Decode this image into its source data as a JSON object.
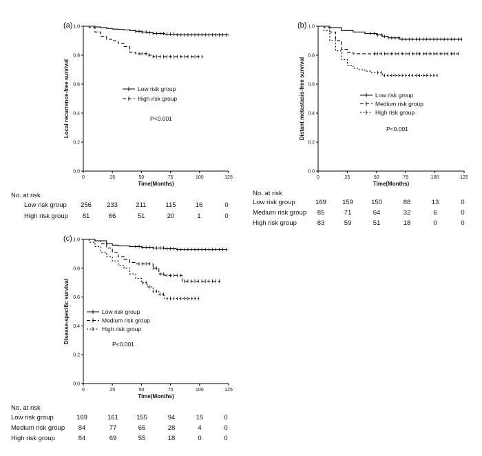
{
  "chart_data": [
    {
      "type": "line",
      "panel_label": "(a)",
      "title": "",
      "xlabel": "Time(Months)",
      "ylabel": "Local recurrence-free survival",
      "xlim": [
        0,
        125
      ],
      "ylim": [
        0,
        1.0
      ],
      "x_ticks": [
        "0",
        "25",
        "50",
        "75",
        "100",
        "125"
      ],
      "y_ticks": [
        "0.0",
        "0.2",
        "0.4",
        "0.6",
        "0.8",
        "1.0"
      ],
      "grid": false,
      "legend_position": "center",
      "p_value": "P<0.001",
      "series": [
        {
          "name": "Low risk group",
          "style": "solid",
          "x": [
            0,
            5,
            10,
            15,
            20,
            25,
            30,
            35,
            40,
            45,
            50,
            55,
            60,
            70,
            80,
            90,
            100,
            110,
            125
          ],
          "y": [
            1.0,
            1.0,
            0.995,
            0.99,
            0.985,
            0.98,
            0.978,
            0.975,
            0.97,
            0.965,
            0.96,
            0.955,
            0.95,
            0.945,
            0.94,
            0.94,
            0.94,
            0.94,
            0.94
          ]
        },
        {
          "name": "High risk group",
          "style": "dashed",
          "x": [
            0,
            5,
            10,
            15,
            20,
            25,
            30,
            35,
            40,
            45,
            50,
            55,
            60,
            70,
            80,
            90,
            103
          ],
          "y": [
            1.0,
            0.99,
            0.96,
            0.93,
            0.91,
            0.9,
            0.88,
            0.86,
            0.82,
            0.81,
            0.81,
            0.8,
            0.79,
            0.79,
            0.79,
            0.79,
            0.79
          ]
        }
      ],
      "risk_table": {
        "title": "No. at risk",
        "rows": [
          {
            "label": "Low risk group",
            "values": [
              "256",
              "233",
              "211",
              "115",
              "16",
              "0"
            ]
          },
          {
            "label": "High risk group",
            "values": [
              "81",
              "66",
              "51",
              "20",
              "1",
              "0"
            ]
          }
        ]
      }
    },
    {
      "type": "line",
      "panel_label": "(b)",
      "title": "",
      "xlabel": "Time(Months)",
      "ylabel": "Distant metastasis-free survival",
      "xlim": [
        0,
        125
      ],
      "ylim": [
        0,
        1.0
      ],
      "x_ticks": [
        "0",
        "25",
        "50",
        "75",
        "100",
        "125"
      ],
      "y_ticks": [
        "0.0",
        "0.2",
        "0.4",
        "0.6",
        "0.8",
        "1.0"
      ],
      "grid": false,
      "legend_position": "center-right",
      "p_value": "P<0.001",
      "series": [
        {
          "name": "Low risk group",
          "style": "solid",
          "x": [
            0,
            10,
            20,
            30,
            40,
            50,
            55,
            60,
            70,
            80,
            90,
            100,
            110,
            123
          ],
          "y": [
            1.0,
            0.99,
            0.97,
            0.96,
            0.95,
            0.94,
            0.93,
            0.92,
            0.91,
            0.91,
            0.91,
            0.91,
            0.91,
            0.91
          ]
        },
        {
          "name": "Medium risk group",
          "style": "dashed",
          "x": [
            0,
            5,
            10,
            15,
            20,
            25,
            30,
            40,
            50,
            60,
            80,
            100,
            120
          ],
          "y": [
            1.0,
            0.99,
            0.96,
            0.9,
            0.84,
            0.82,
            0.81,
            0.81,
            0.81,
            0.81,
            0.81,
            0.81,
            0.81
          ]
        },
        {
          "name": "High risk group",
          "style": "dotted",
          "x": [
            0,
            5,
            10,
            15,
            20,
            25,
            30,
            35,
            40,
            45,
            50,
            55,
            60,
            70,
            80,
            90,
            102
          ],
          "y": [
            1.0,
            0.97,
            0.9,
            0.83,
            0.77,
            0.73,
            0.71,
            0.7,
            0.69,
            0.68,
            0.68,
            0.66,
            0.66,
            0.66,
            0.66,
            0.66,
            0.66
          ]
        }
      ],
      "risk_table": {
        "title": "No. at risk",
        "rows": [
          {
            "label": "Low risk group",
            "values": [
              "169",
              "159",
              "150",
              "88",
              "13",
              "0"
            ]
          },
          {
            "label": "Medium risk group",
            "values": [
              "85",
              "71",
              "64",
              "32",
              "6",
              "0"
            ]
          },
          {
            "label": "High risk group",
            "values": [
              "83",
              "59",
              "51",
              "18",
              "0",
              "0"
            ]
          }
        ]
      }
    },
    {
      "type": "line",
      "panel_label": "(c)",
      "title": "",
      "xlabel": "Time(Months)",
      "ylabel": "Disease-specific survival",
      "xlim": [
        0,
        125
      ],
      "ylim": [
        0,
        1.0
      ],
      "x_ticks": [
        "0",
        "25",
        "50",
        "75",
        "100",
        "125"
      ],
      "y_ticks": [
        "0.0",
        "0.2",
        "0.4",
        "0.6",
        "0.8",
        "1.0"
      ],
      "grid": false,
      "legend_position": "center-left",
      "p_value": "P<0.001",
      "series": [
        {
          "name": "Low risk group",
          "style": "solid",
          "x": [
            0,
            10,
            20,
            25,
            30,
            40,
            50,
            60,
            70,
            80,
            90,
            100,
            110,
            124
          ],
          "y": [
            1.0,
            0.99,
            0.97,
            0.96,
            0.955,
            0.95,
            0.945,
            0.94,
            0.935,
            0.93,
            0.93,
            0.93,
            0.93,
            0.93
          ]
        },
        {
          "name": "Medium risk group",
          "style": "dashed",
          "x": [
            0,
            10,
            15,
            20,
            25,
            30,
            35,
            40,
            45,
            50,
            60,
            65,
            70,
            75,
            80,
            85,
            90,
            100,
            110,
            118
          ],
          "y": [
            1.0,
            0.99,
            0.97,
            0.94,
            0.91,
            0.88,
            0.86,
            0.84,
            0.83,
            0.83,
            0.8,
            0.76,
            0.75,
            0.75,
            0.75,
            0.71,
            0.71,
            0.71,
            0.71,
            0.71
          ]
        },
        {
          "name": "High risk group",
          "style": "dotted",
          "x": [
            0,
            5,
            10,
            15,
            20,
            25,
            30,
            35,
            40,
            45,
            50,
            55,
            60,
            65,
            70,
            75,
            80,
            90,
            100
          ],
          "y": [
            1.0,
            0.98,
            0.95,
            0.91,
            0.88,
            0.85,
            0.82,
            0.8,
            0.76,
            0.73,
            0.7,
            0.67,
            0.64,
            0.62,
            0.59,
            0.59,
            0.59,
            0.59,
            0.59
          ]
        }
      ],
      "risk_table": {
        "title": "No. at risk",
        "rows": [
          {
            "label": "Low risk group",
            "values": [
              "169",
              "161",
              "155",
              "94",
              "15",
              "0"
            ]
          },
          {
            "label": "Medium risk group",
            "values": [
              "84",
              "77",
              "65",
              "28",
              "4",
              "0"
            ]
          },
          {
            "label": "High risk group",
            "values": [
              "84",
              "69",
              "55",
              "18",
              "0",
              "0"
            ]
          }
        ]
      }
    }
  ]
}
